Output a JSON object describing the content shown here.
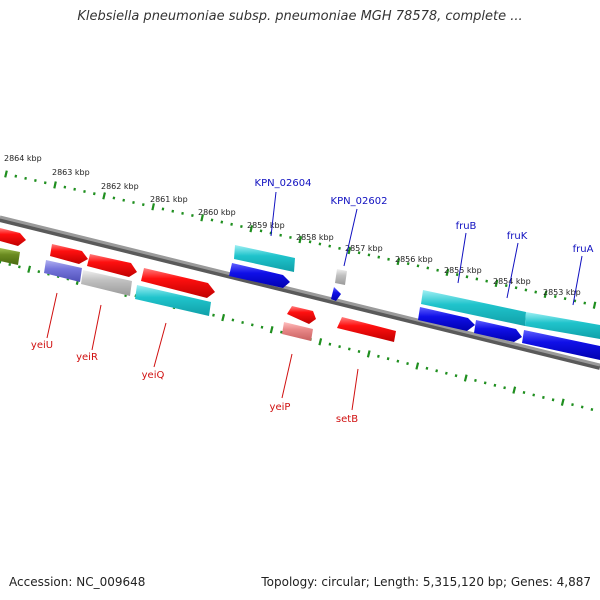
{
  "title": "Klebsiella pneumoniae subsp. pneumoniae MGH 78578, complete ...",
  "footer": {
    "accession": "Accession: NC_009648",
    "stats": "Topology: circular; Length: 5,315,120 bp; Genes: 4,887"
  },
  "ticks": [
    "2864 kbp",
    "2863 kbp",
    "2862 kbp",
    "2861 kbp",
    "2860 kbp",
    "2859 kbp",
    "2858 kbp",
    "2857 kbp",
    "2856 kbp",
    "2855 kbp",
    "2854 kbp",
    "2853 kbp"
  ],
  "gene_labels_top": [
    "KPN_02604",
    "KPN_02602",
    "fruB",
    "fruK",
    "fruA"
  ],
  "gene_labels_bottom": [
    "yeiU",
    "yeiR",
    "yeiQ",
    "yeiP",
    "setB"
  ],
  "colors": {
    "backbone": "#8a8a8a",
    "tick_dots": "#1f8f1f",
    "label_top": "#1010c0",
    "label_bottom": "#d01010",
    "red": "#e01010",
    "cyan": "#20c0c8",
    "blue": "#1010e0",
    "gray": "#b4b4b4",
    "violet": "#7070d8",
    "pink": "#e88080",
    "olive": "#6a8a20"
  }
}
